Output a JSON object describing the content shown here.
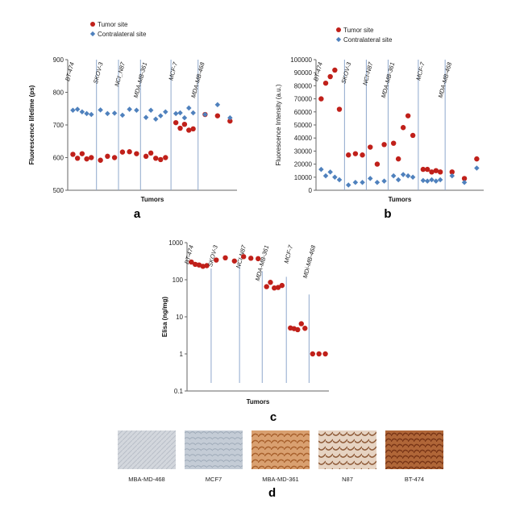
{
  "chart_data": [
    {
      "panel": "a",
      "type": "scatter",
      "ylabel": "Fluorescence lifetime (ps)",
      "xlabel": "Tumors",
      "ylim": [
        500,
        900
      ],
      "yticks": [
        500,
        600,
        700,
        800,
        900
      ],
      "legend": [
        "Tumor site",
        "Contralateral site"
      ],
      "legend_position": "top",
      "categories": [
        "BT-474",
        "SKOV-3",
        "NCI_N87",
        "MDA-MB-361",
        "MCF-7",
        "MDA-MB-468"
      ],
      "series": [
        {
          "name": "Tumor site",
          "color": "#c0201a",
          "values": [
            [
              610,
              598,
              612,
              596,
              600
            ],
            [
              592,
              604,
              600
            ],
            [
              617,
              618,
              612
            ],
            [
              604,
              614,
              598,
              594,
              600
            ],
            [
              707,
              690,
              702,
              684,
              688
            ],
            [
              732,
              728,
              712
            ]
          ]
        },
        {
          "name": "Contralateral site",
          "color": "#4f81bd",
          "values": [
            [
              745,
              748,
              740,
              735,
              732
            ],
            [
              746,
              735,
              736
            ],
            [
              730,
              748,
              745
            ],
            [
              723,
              745,
              718,
              728,
              740
            ],
            [
              735,
              737,
              722,
              752,
              737
            ],
            [
              732,
              762,
              722
            ]
          ]
        }
      ]
    },
    {
      "panel": "b",
      "type": "scatter",
      "ylabel": "Fluorescence Intensity (a.u.)",
      "xlabel": "Tumors",
      "ylim": [
        0,
        100000
      ],
      "yticks": [
        0,
        10000,
        20000,
        30000,
        40000,
        50000,
        60000,
        70000,
        80000,
        90000,
        100000
      ],
      "legend": [
        "Tumor site",
        "Contralateral site"
      ],
      "legend_position": "top",
      "categories": [
        "BT-474",
        "SKOV-3",
        "NCI-N87",
        "MDA-MB-361",
        "MCF-7",
        "MDA-MB-468"
      ],
      "series": [
        {
          "name": "Tumor site",
          "color": "#c0201a",
          "values": [
            [
              70000,
              82000,
              87000,
              92000,
              62000
            ],
            [
              27000,
              28000,
              27000
            ],
            [
              33000,
              20000,
              35000
            ],
            [
              36000,
              24000,
              48000,
              57000,
              42000
            ],
            [
              16000,
              16000,
              14000,
              15000,
              14000
            ],
            [
              14000,
              9000,
              24000
            ]
          ]
        },
        {
          "name": "Contralateral site",
          "color": "#4f81bd",
          "values": [
            [
              16000,
              11000,
              14000,
              10000,
              8000
            ],
            [
              4000,
              6000,
              6000
            ],
            [
              9000,
              6000,
              7000
            ],
            [
              11000,
              8000,
              12000,
              11000,
              10000
            ],
            [
              7500,
              7000,
              8000,
              7000,
              8000
            ],
            [
              11000,
              6000,
              17000
            ]
          ]
        }
      ]
    },
    {
      "panel": "c",
      "type": "scatter",
      "ylabel": "Elisa (ng/mg)",
      "xlabel": "Tumors",
      "yscale": "log",
      "ylim": [
        0.1,
        1000
      ],
      "yticks": [
        "0.1",
        "1",
        "10",
        "100",
        "1000"
      ],
      "categories": [
        "BT-474",
        "SKOV-3",
        "NCI-N87",
        "MDA-MB-361",
        "MCF-7",
        "MDi-MB-468"
      ],
      "series": [
        {
          "name": "Tumor site",
          "color": "#c0201a",
          "values": [
            [
              300,
              260,
              250,
              230,
              240
            ],
            [
              340,
              390,
              320
            ],
            [
              420,
              380,
              370
            ],
            [
              65,
              85,
              60,
              62,
              70
            ],
            [
              5,
              4.8,
              4.5,
              6.5,
              4.9
            ],
            [
              1,
              1,
              1
            ]
          ]
        }
      ]
    }
  ],
  "panel_labels": {
    "a": "a",
    "b": "b",
    "c": "c",
    "d": "d"
  },
  "histology": [
    {
      "label": "MBA-MD-468",
      "color": "#d0d4da"
    },
    {
      "label": "MCF7",
      "color": "#bec8d2"
    },
    {
      "label": "MBA-MD-361",
      "color": "#c98e58"
    },
    {
      "label": "N87",
      "color": "#b48a6e"
    },
    {
      "label": "BT-474",
      "color": "#a2582e"
    }
  ]
}
